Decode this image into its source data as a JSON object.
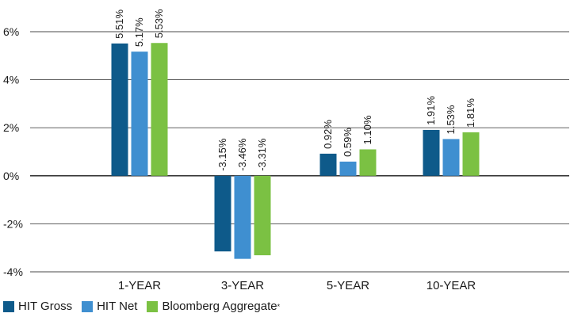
{
  "chart_data": {
    "type": "bar",
    "categories": [
      "1-YEAR",
      "3-YEAR",
      "5-YEAR",
      "10-YEAR"
    ],
    "series": [
      {
        "name": "HIT Gross",
        "color": "#0e5a8a",
        "values": [
          5.51,
          -3.15,
          0.92,
          1.91
        ],
        "labels": [
          "5.51%",
          "-3.15%",
          "0.92%",
          "1.91%"
        ]
      },
      {
        "name": "HIT Net",
        "color": "#3f8fd0",
        "values": [
          5.17,
          -3.46,
          0.59,
          1.53
        ],
        "labels": [
          "5.17%",
          "-3.46%",
          "0.59%",
          "1.53%"
        ]
      },
      {
        "name": "Bloomberg Aggregate",
        "name_suffix": "*",
        "color": "#7bc143",
        "values": [
          5.53,
          -3.31,
          1.1,
          1.81
        ],
        "labels": [
          "5.53%",
          "-3.31%",
          "1.10%",
          "1.81%"
        ]
      }
    ],
    "ylim": [
      -4,
      6
    ],
    "yticks": [
      6,
      4,
      2,
      0,
      -2,
      -4
    ],
    "ytick_labels": [
      "6%",
      "4%",
      "2%",
      "0%",
      "-2%",
      "-4%"
    ],
    "grid": true,
    "legend_position": "bottom-left"
  }
}
